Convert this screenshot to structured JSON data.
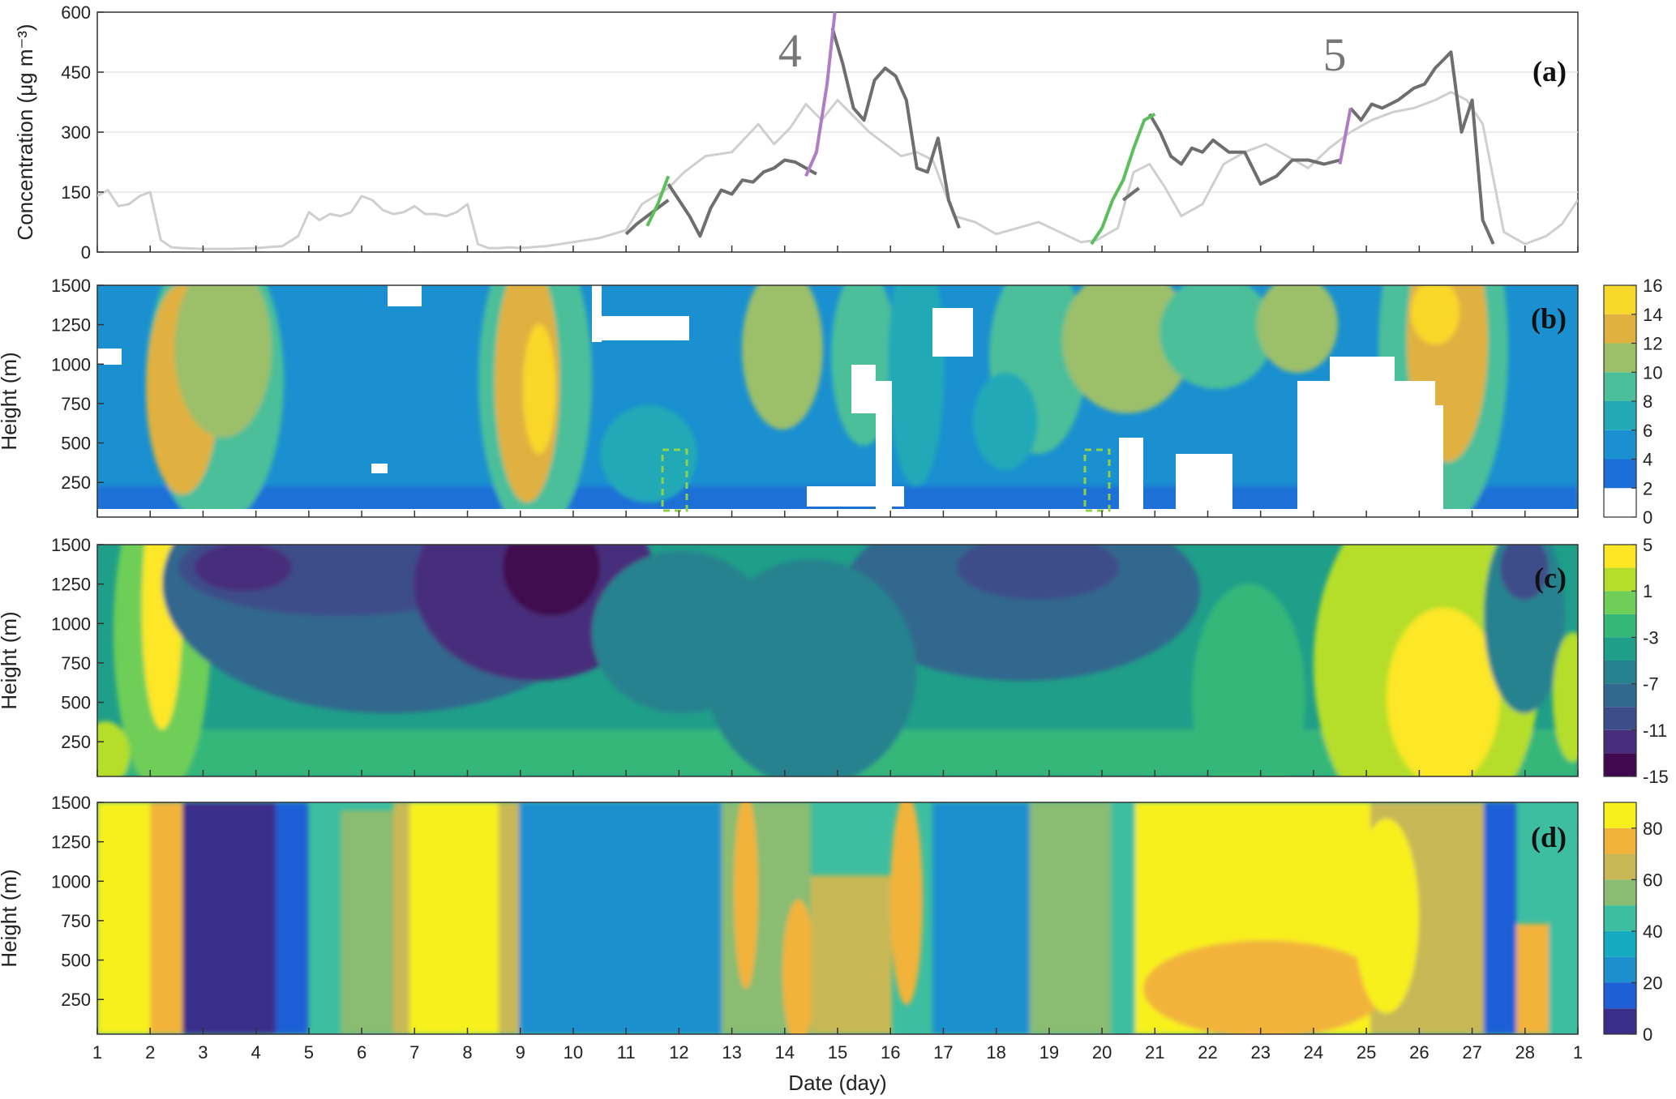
{
  "chart_data": [
    {
      "type": "line",
      "panel_label": "(a)",
      "ylabel": "Concentration (μg m⁻³)",
      "ylim": [
        0,
        600
      ],
      "yticks": [
        "0",
        "150",
        "300",
        "450",
        "600"
      ],
      "episode_labels": [
        {
          "text": "4",
          "x": 14.1,
          "y": 505
        },
        {
          "text": "5",
          "x": 24.4,
          "y": 495
        }
      ],
      "series": [
        {
          "style": "light",
          "color": "#cfcfcf",
          "x": [
            1.0,
            1.2,
            1.4,
            1.6,
            1.8,
            2.0,
            2.2,
            2.4,
            2.6,
            3.0,
            3.5,
            4.0,
            4.5,
            4.8,
            5.0,
            5.2,
            5.4,
            5.6,
            5.8,
            6.0,
            6.2,
            6.4,
            6.6,
            6.8,
            7.0,
            7.2,
            7.4,
            7.6,
            7.8,
            8.0,
            8.2,
            8.4,
            8.6,
            8.8,
            9.0,
            9.5,
            10.0,
            10.5,
            11.0,
            11.3,
            11.8,
            12.1,
            12.5,
            13.0,
            13.5,
            13.8,
            14.1,
            14.4,
            14.7,
            15.0,
            15.3,
            15.6,
            15.9,
            16.2,
            16.5,
            16.8,
            17.2,
            17.6,
            18.0,
            18.4,
            18.8,
            19.2,
            19.6,
            19.9,
            20.3,
            20.6,
            20.9,
            21.2,
            21.5,
            21.9,
            22.3,
            22.7,
            23.1,
            23.5,
            23.9,
            24.3,
            24.7,
            25.1,
            25.5,
            25.9,
            26.3,
            26.6,
            26.9,
            27.2,
            27.6,
            28.0,
            28.4,
            28.7,
            29.0
          ],
          "values": [
            140,
            155,
            115,
            120,
            140,
            150,
            30,
            12,
            10,
            8,
            8,
            10,
            15,
            40,
            100,
            80,
            95,
            90,
            100,
            140,
            130,
            105,
            95,
            100,
            115,
            95,
            95,
            90,
            100,
            120,
            20,
            10,
            10,
            12,
            10,
            15,
            25,
            35,
            55,
            120,
            160,
            200,
            240,
            250,
            320,
            270,
            310,
            370,
            330,
            380,
            340,
            300,
            270,
            240,
            250,
            230,
            90,
            75,
            45,
            60,
            75,
            50,
            25,
            30,
            60,
            200,
            220,
            160,
            90,
            120,
            220,
            250,
            270,
            240,
            210,
            260,
            300,
            330,
            350,
            360,
            380,
            400,
            380,
            320,
            50,
            20,
            40,
            70,
            130
          ]
        },
        {
          "style": "dark",
          "color": "#6e6e6e",
          "segments": [
            {
              "x": [
                11.0,
                11.2,
                11.4,
                11.6,
                11.8
              ],
              "values": [
                45,
                70,
                90,
                110,
                130
              ]
            },
            {
              "x": [
                11.8,
                12.0,
                12.2,
                12.4,
                12.6,
                12.8,
                13.0,
                13.2,
                13.4,
                13.6,
                13.8,
                14.0,
                14.2,
                14.4,
                14.6
              ],
              "values": [
                170,
                130,
                90,
                40,
                110,
                155,
                145,
                180,
                175,
                200,
                210,
                230,
                225,
                210,
                195
              ]
            },
            {
              "x": [
                14.9,
                15.1,
                15.3,
                15.5,
                15.7,
                15.9,
                16.1,
                16.3,
                16.5,
                16.7,
                16.9,
                17.1,
                17.3
              ],
              "values": [
                560,
                470,
                360,
                330,
                430,
                460,
                440,
                380,
                210,
                200,
                285,
                130,
                60
              ]
            },
            {
              "x": [
                20.4,
                20.7
              ],
              "values": [
                130,
                160
              ]
            },
            {
              "x": [
                20.9,
                21.1,
                21.3,
                21.5,
                21.7,
                21.9,
                22.1,
                22.4,
                22.7,
                23.0,
                23.3,
                23.6,
                23.9,
                24.2,
                24.5
              ],
              "values": [
                345,
                300,
                240,
                220,
                260,
                250,
                280,
                250,
                250,
                170,
                190,
                230,
                230,
                220,
                230
              ]
            },
            {
              "x": [
                24.7,
                24.9,
                25.1,
                25.3,
                25.6,
                25.9,
                26.1,
                26.3,
                26.6,
                26.8,
                27.0,
                27.2,
                27.4
              ],
              "values": [
                360,
                330,
                370,
                360,
                380,
                410,
                420,
                460,
                500,
                300,
                380,
                80,
                20
              ]
            }
          ]
        },
        {
          "style": "green",
          "color": "#5cbf5c",
          "segments": [
            {
              "x": [
                11.4,
                11.6,
                11.8
              ],
              "values": [
                65,
                120,
                190
              ]
            },
            {
              "x": [
                19.8,
                20.0,
                20.2,
                20.4,
                20.6,
                20.8,
                21.0
              ],
              "values": [
                20,
                60,
                130,
                180,
                260,
                330,
                345
              ]
            }
          ]
        },
        {
          "style": "purple",
          "color": "#b07cc6",
          "segments": [
            {
              "x": [
                14.4,
                14.6,
                14.8,
                14.95
              ],
              "values": [
                190,
                250,
                420,
                600
              ]
            },
            {
              "x": [
                24.5,
                24.7
              ],
              "values": [
                220,
                360
              ]
            }
          ]
        }
      ]
    },
    {
      "type": "heatmap",
      "panel_label": "(b)",
      "ylabel": "Height (m)",
      "yticks": [
        "250",
        "500",
        "750",
        "1000",
        "1250",
        "1500"
      ],
      "colorbar_ticks": [
        "0",
        "2",
        "4",
        "6",
        "8",
        "10",
        "12",
        "14",
        "16"
      ],
      "levels": [
        0,
        2,
        4,
        6,
        8,
        10,
        12,
        14,
        16
      ],
      "colors": [
        "#ffffff",
        "#1c6fd6",
        "#1a90d0",
        "#21a9b8",
        "#4bbf9a",
        "#9cbf6a",
        "#e0b13f",
        "#f9d82c"
      ]
    },
    {
      "type": "heatmap",
      "panel_label": "(c)",
      "ylabel": "Height (m)",
      "yticks": [
        "250",
        "500",
        "750",
        "1000",
        "1250",
        "1500"
      ],
      "colorbar_ticks": [
        "-15",
        "-11",
        "-7",
        "-3",
        "1",
        "5"
      ],
      "levels": [
        -15,
        -13,
        -11,
        -9,
        -7,
        -5,
        -3,
        -1,
        1,
        3,
        5
      ],
      "colors": [
        "#40084f",
        "#472d7b",
        "#3d4d8a",
        "#31688e",
        "#26828e",
        "#1f9e89",
        "#35b779",
        "#6ece58",
        "#b5de2b",
        "#fde725"
      ]
    },
    {
      "type": "heatmap",
      "panel_label": "(d)",
      "ylabel": "Height (m)",
      "xlabel": "Date (day)",
      "yticks": [
        "250",
        "500",
        "750",
        "1000",
        "1250",
        "1500"
      ],
      "colorbar_ticks": [
        "0",
        "20",
        "40",
        "60",
        "80"
      ],
      "levels": [
        0,
        10,
        20,
        30,
        40,
        50,
        60,
        70,
        80,
        90
      ],
      "colors": [
        "#3b2d8a",
        "#1e5fd6",
        "#1d8fcf",
        "#14aac0",
        "#3ebea0",
        "#8abc72",
        "#c8b855",
        "#f2b33a",
        "#f8f01c"
      ]
    }
  ],
  "x_axis": {
    "xlabel": "Date (day)",
    "xticks": [
      "1",
      "2",
      "3",
      "4",
      "5",
      "6",
      "7",
      "8",
      "9",
      "10",
      "11",
      "12",
      "13",
      "14",
      "15",
      "16",
      "17",
      "18",
      "19",
      "20",
      "21",
      "22",
      "23",
      "24",
      "25",
      "26",
      "27",
      "28",
      "1"
    ]
  }
}
